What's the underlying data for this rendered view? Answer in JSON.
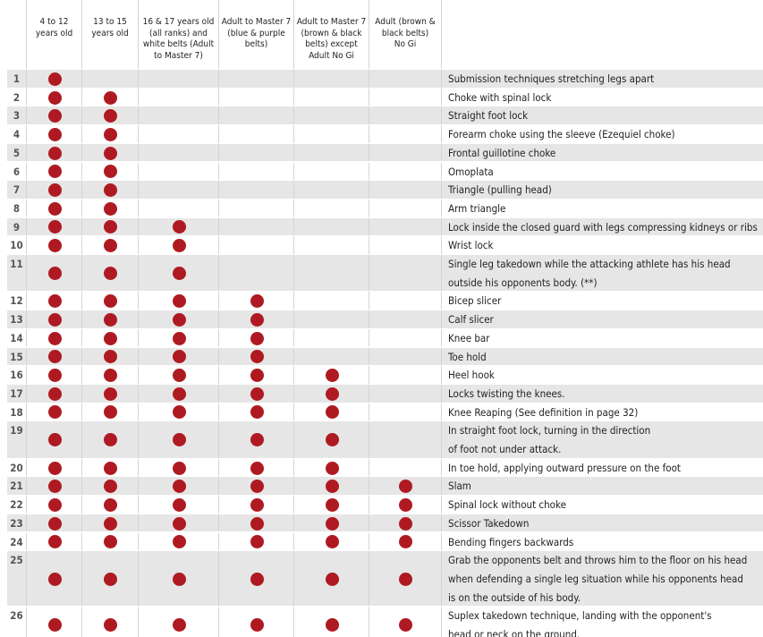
{
  "header": {
    "columns": [
      [
        "4 to 12",
        "years old"
      ],
      [
        "13 to 15",
        "years old"
      ],
      [
        "16 & 17 years old",
        "(all ranks) and",
        "white belts (Adult",
        "to Master 7)"
      ],
      [
        "Adult to Master 7",
        "(blue & purple",
        "belts)"
      ],
      [
        "Adult to Master 7",
        "(brown & black",
        "belts) except",
        "Adult No Gi"
      ],
      [
        "Adult (brown &",
        "black belts)",
        "No Gi"
      ]
    ]
  },
  "table": {
    "rows": [
      {
        "number": "1",
        "marks": [
          true,
          false,
          false,
          false,
          false,
          false
        ],
        "lines": [
          "Submission techniques stretching legs apart"
        ]
      },
      {
        "number": "2",
        "marks": [
          true,
          true,
          false,
          false,
          false,
          false
        ],
        "lines": [
          "Choke with spinal lock"
        ]
      },
      {
        "number": "3",
        "marks": [
          true,
          true,
          false,
          false,
          false,
          false
        ],
        "lines": [
          "Straight foot lock"
        ]
      },
      {
        "number": "4",
        "marks": [
          true,
          true,
          false,
          false,
          false,
          false
        ],
        "lines": [
          "Forearm choke using the sleeve (Ezequiel choke)"
        ]
      },
      {
        "number": "5",
        "marks": [
          true,
          true,
          false,
          false,
          false,
          false
        ],
        "lines": [
          "Frontal guillotine choke"
        ]
      },
      {
        "number": "6",
        "marks": [
          true,
          true,
          false,
          false,
          false,
          false
        ],
        "lines": [
          "Omoplata"
        ]
      },
      {
        "number": "7",
        "marks": [
          true,
          true,
          false,
          false,
          false,
          false
        ],
        "lines": [
          "Triangle (pulling head)"
        ]
      },
      {
        "number": "8",
        "marks": [
          true,
          true,
          false,
          false,
          false,
          false
        ],
        "lines": [
          "Arm triangle"
        ]
      },
      {
        "number": "9",
        "marks": [
          true,
          true,
          true,
          false,
          false,
          false
        ],
        "lines": [
          "Lock inside the closed guard with legs compressing kidneys or ribs"
        ]
      },
      {
        "number": "10",
        "marks": [
          true,
          true,
          true,
          false,
          false,
          false
        ],
        "lines": [
          "Wrist lock"
        ]
      },
      {
        "number": "11",
        "marks": [
          true,
          true,
          true,
          false,
          false,
          false
        ],
        "lines": [
          "Single leg takedown while the attacking athlete has his head",
          "outside his opponents body. (**)"
        ]
      },
      {
        "number": "12",
        "marks": [
          true,
          true,
          true,
          true,
          false,
          false
        ],
        "lines": [
          "Bicep slicer"
        ]
      },
      {
        "number": "13",
        "marks": [
          true,
          true,
          true,
          true,
          false,
          false
        ],
        "lines": [
          "Calf slicer"
        ]
      },
      {
        "number": "14",
        "marks": [
          true,
          true,
          true,
          true,
          false,
          false
        ],
        "lines": [
          "Knee bar"
        ]
      },
      {
        "number": "15",
        "marks": [
          true,
          true,
          true,
          true,
          false,
          false
        ],
        "lines": [
          "Toe hold"
        ]
      },
      {
        "number": "16",
        "marks": [
          true,
          true,
          true,
          true,
          true,
          false
        ],
        "lines": [
          "Heel hook"
        ]
      },
      {
        "number": "17",
        "marks": [
          true,
          true,
          true,
          true,
          true,
          false
        ],
        "lines": [
          "Locks twisting the knees."
        ]
      },
      {
        "number": "18",
        "marks": [
          true,
          true,
          true,
          true,
          true,
          false
        ],
        "lines": [
          "Knee Reaping (See definition in page 32)"
        ]
      },
      {
        "number": "19",
        "marks": [
          true,
          true,
          true,
          true,
          true,
          false
        ],
        "lines": [
          "In straight foot lock, turning in the direction",
          "of foot not under attack."
        ]
      },
      {
        "number": "20",
        "marks": [
          true,
          true,
          true,
          true,
          true,
          false
        ],
        "lines": [
          "In toe hold, applying outward pressure on the foot"
        ]
      },
      {
        "number": "21",
        "marks": [
          true,
          true,
          true,
          true,
          true,
          true
        ],
        "lines": [
          "Slam"
        ]
      },
      {
        "number": "22",
        "marks": [
          true,
          true,
          true,
          true,
          true,
          true
        ],
        "lines": [
          "Spinal lock without choke"
        ]
      },
      {
        "number": "23",
        "marks": [
          true,
          true,
          true,
          true,
          true,
          true
        ],
        "lines": [
          "Scissor Takedown"
        ]
      },
      {
        "number": "24",
        "marks": [
          true,
          true,
          true,
          true,
          true,
          true
        ],
        "lines": [
          "Bending fingers backwards"
        ]
      },
      {
        "number": "25",
        "marks": [
          true,
          true,
          true,
          true,
          true,
          true
        ],
        "lines": [
          "Grab the opponents belt and throws him to the floor on his head",
          "when defending a single leg situation while his opponents head",
          "is on the outside of his body."
        ]
      },
      {
        "number": "26",
        "marks": [
          true,
          true,
          true,
          true,
          true,
          true
        ],
        "lines": [
          "Suplex takedown technique, landing with the opponent's",
          "head or neck on the ground."
        ]
      }
    ]
  }
}
